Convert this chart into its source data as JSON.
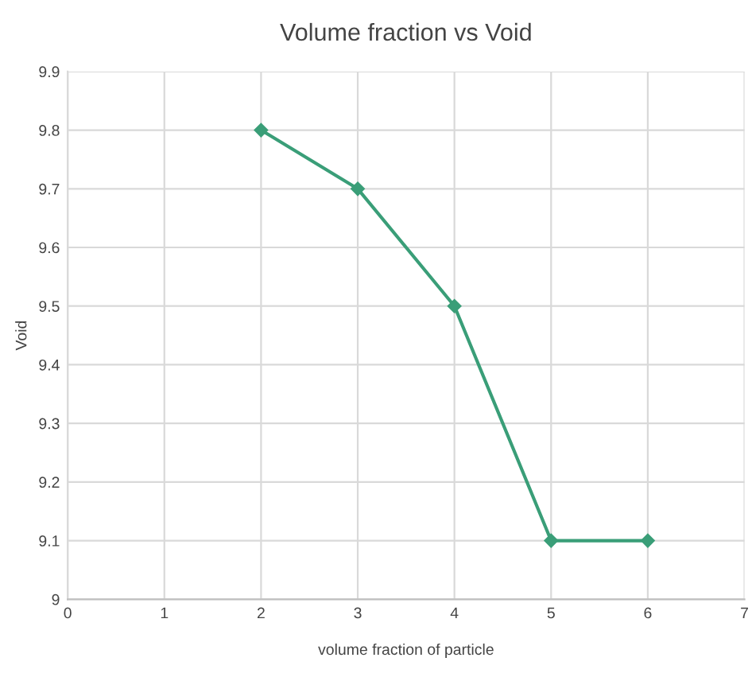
{
  "chart_data": {
    "type": "line",
    "title": "Volume fraction vs Void",
    "xlabel": "volume fraction of particle",
    "ylabel": "Void",
    "x": [
      2,
      3,
      4,
      5,
      6
    ],
    "series": [
      {
        "color": "#3a9e78",
        "values": [
          9.8,
          9.7,
          9.5,
          9.1,
          9.1
        ]
      }
    ],
    "xlim": [
      0,
      7
    ],
    "xticks": [
      0,
      1,
      2,
      3,
      4,
      5,
      6,
      7
    ],
    "ylim": [
      9,
      9.9
    ],
    "yticks": [
      9,
      9.1,
      9.2,
      9.3,
      9.4,
      9.5,
      9.6,
      9.7,
      9.8,
      9.9
    ],
    "grid": true,
    "marker": "diamond",
    "line_style": "solid"
  }
}
